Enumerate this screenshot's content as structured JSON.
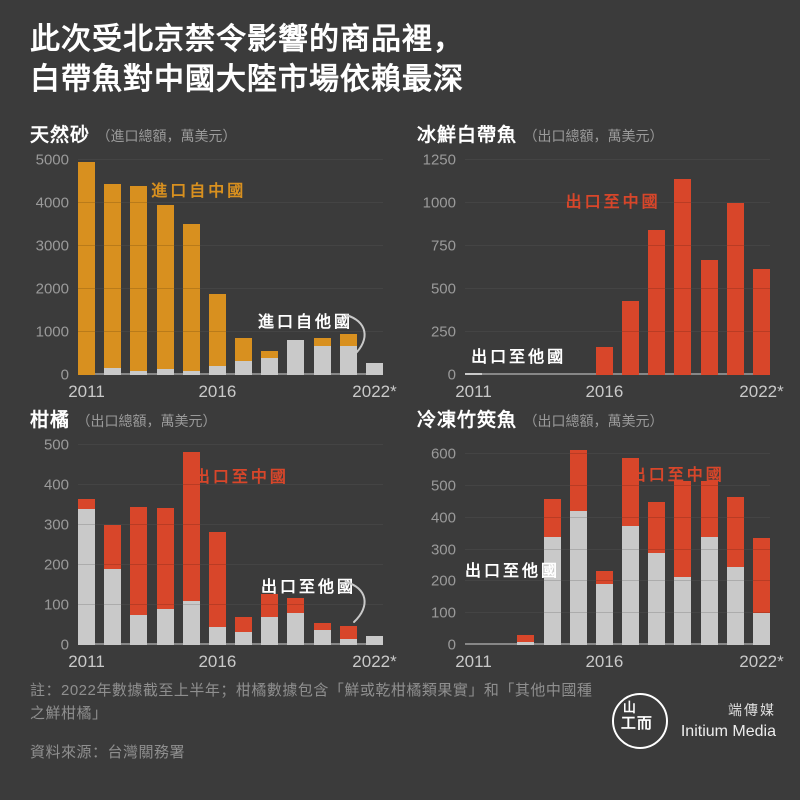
{
  "page": {
    "title_line1": "此次受北京禁令影響的商品裡，",
    "title_line2": "白帶魚對中國大陸市場依賴最深",
    "footnote_line1": "註：2022年數據截至上半年；柑橘數據包含「鮮或乾柑橘類果實」和「其他中國種",
    "footnote_line2": "之鮮柑橘」",
    "source": "資料來源：台灣關務署",
    "brand_cn": "端傳媒",
    "brand_en": "Initium Media",
    "logo_glyph_top": "山",
    "logo_glyph_bottom": "工而"
  },
  "colors": {
    "background": "#3B3B3B",
    "china_orange": "#D8901F",
    "china_red": "#D8462A",
    "other_countries_gray": "#C9C9C9",
    "gridline": "#505050",
    "baseline": "#878787",
    "tick_text": "#9A9A9A",
    "year_text": "#C9C9C9",
    "title_text": "#FFFFFF",
    "footnote_text": "#8F8F8F"
  },
  "chart_data": [
    {
      "type": "bar",
      "stacked": true,
      "title": "天然砂",
      "subtitle": "（進口總額，萬美元）",
      "ylabel": "萬美元",
      "categories": [
        "2011",
        "2012",
        "2013",
        "2014",
        "2015",
        "2016",
        "2017",
        "2018",
        "2019",
        "2020",
        "2021",
        "2022*"
      ],
      "series": [
        {
          "name": "進口自他國",
          "key": "others",
          "color": "#C9C9C9",
          "values": [
            0,
            150,
            90,
            130,
            90,
            215,
            320,
            400,
            820,
            680,
            680,
            280
          ]
        },
        {
          "name": "進口自中國",
          "key": "china",
          "color": "#D8901F",
          "values": [
            4950,
            4280,
            4310,
            3820,
            3410,
            1675,
            540,
            150,
            0,
            180,
            270,
            0
          ]
        }
      ],
      "ylim": [
        0,
        5000
      ],
      "yticks": [
        0,
        1000,
        2000,
        3000,
        4000,
        5000
      ],
      "xtick_indices": [
        0,
        5,
        11
      ],
      "grid": true,
      "annotations": [
        {
          "text": "進口自中國",
          "color": "#D8901F",
          "x": 24,
          "y": 8
        },
        {
          "text": "進口自他國",
          "color": "#FFFFFF",
          "x": 59,
          "y": 69,
          "arrow": {
            "x": 87,
            "y": 71
          }
        }
      ]
    },
    {
      "type": "bar",
      "stacked": true,
      "title": "冰鮮白帶魚",
      "subtitle": "（出口總額，萬美元）",
      "ylabel": "萬美元",
      "categories": [
        "2011",
        "2012",
        "2013",
        "2014",
        "2015",
        "2016",
        "2017",
        "2018",
        "2019",
        "2020",
        "2021",
        "2022*"
      ],
      "series": [
        {
          "name": "出口至他國",
          "key": "others",
          "color": "#C9C9C9",
          "values": [
            8,
            0,
            0,
            0,
            0,
            0,
            0,
            0,
            0,
            0,
            0,
            0
          ]
        },
        {
          "name": "出口至中國",
          "key": "china",
          "color": "#D8462A",
          "values": [
            0,
            0,
            0,
            0,
            0,
            160,
            430,
            840,
            1140,
            665,
            1000,
            615
          ]
        }
      ],
      "ylim": [
        0,
        1250
      ],
      "yticks": [
        0,
        250,
        500,
        750,
        1000,
        1250
      ],
      "xtick_indices": [
        0,
        5,
        11
      ],
      "grid": true,
      "annotations": [
        {
          "text": "出口至中國",
          "color": "#D8462A",
          "x": 33,
          "y": 13
        },
        {
          "text": "出口至他國",
          "color": "#FFFFFF",
          "x": 2,
          "y": 85
        }
      ]
    },
    {
      "type": "bar",
      "stacked": true,
      "title": "柑橘",
      "subtitle": "（出口總額，萬美元）",
      "ylabel": "萬美元",
      "categories": [
        "2011",
        "2012",
        "2013",
        "2014",
        "2015",
        "2016",
        "2017",
        "2018",
        "2019",
        "2020",
        "2021",
        "2022*"
      ],
      "series": [
        {
          "name": "出口至他國",
          "key": "others",
          "color": "#C9C9C9",
          "values": [
            340,
            190,
            75,
            90,
            110,
            45,
            32,
            70,
            80,
            36,
            15,
            23
          ]
        },
        {
          "name": "出口至中國",
          "key": "china",
          "color": "#D8462A",
          "values": [
            25,
            110,
            270,
            252,
            372,
            236,
            38,
            56,
            37,
            19,
            33,
            0
          ]
        }
      ],
      "ylim": [
        0,
        500
      ],
      "yticks": [
        0,
        100,
        200,
        300,
        400,
        500
      ],
      "xtick_indices": [
        0,
        5,
        11
      ],
      "grid": true,
      "annotations": [
        {
          "text": "出口至中國",
          "color": "#D8462A",
          "x": 38,
          "y": 9
        },
        {
          "text": "出口至他國",
          "color": "#FFFFFF",
          "x": 60,
          "y": 64,
          "arrow": {
            "x": 87,
            "y": 67
          }
        }
      ]
    },
    {
      "type": "bar",
      "stacked": true,
      "title": "冷凍竹筴魚",
      "subtitle": "（出口總額，萬美元）",
      "ylabel": "萬美元",
      "categories": [
        "2011",
        "2012",
        "2013",
        "2014",
        "2015",
        "2016",
        "2017",
        "2018",
        "2019",
        "2020",
        "2021",
        "2022*"
      ],
      "series": [
        {
          "name": "出口至他國",
          "key": "others",
          "color": "#C9C9C9",
          "values": [
            0,
            0,
            8,
            340,
            420,
            190,
            375,
            290,
            215,
            340,
            245,
            100
          ]
        },
        {
          "name": "出口至中國",
          "key": "china",
          "color": "#D8462A",
          "values": [
            0,
            0,
            22,
            120,
            195,
            42,
            212,
            160,
            300,
            175,
            220,
            235
          ]
        }
      ],
      "ylim": [
        0,
        630
      ],
      "yticks": [
        0,
        100,
        200,
        300,
        400,
        500,
        600
      ],
      "xtick_indices": [
        0,
        5,
        11
      ],
      "grid": true,
      "annotations": [
        {
          "text": "出口至中國",
          "color": "#D8462A",
          "x": 54,
          "y": 8
        },
        {
          "text": "出口至他國",
          "color": "#FFFFFF",
          "x": 0,
          "y": 56
        }
      ]
    }
  ]
}
